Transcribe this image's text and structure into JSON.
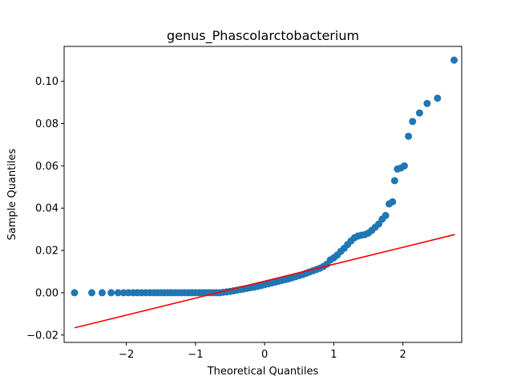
{
  "chart_data": {
    "type": "scatter",
    "title": "genus_Phascolarctobacterium",
    "xlabel": "Theoretical Quantiles",
    "ylabel": "Sample Quantiles",
    "xlim": [
      -2.9,
      2.85
    ],
    "ylim": [
      -0.0235,
      0.1165
    ],
    "xticks": [
      -2,
      -1,
      0,
      1,
      2
    ],
    "xtick_labels": [
      "−2",
      "−1",
      "0",
      "1",
      "2"
    ],
    "yticks": [
      -0.02,
      0.0,
      0.02,
      0.04,
      0.06,
      0.08,
      0.1
    ],
    "ytick_labels": [
      "−0.02",
      "0.00",
      "0.02",
      "0.04",
      "0.06",
      "0.08",
      "0.10"
    ],
    "grid": false,
    "point_color": "#1f77b4",
    "line_color": "#ff0000",
    "reference_line": {
      "x": [
        -2.75,
        2.75
      ],
      "y": [
        -0.0166,
        0.0275
      ]
    },
    "series": [
      {
        "values": [
          [
            -2.75,
            0.0
          ],
          [
            -2.5,
            0.0
          ],
          [
            -2.35,
            0.0
          ],
          [
            -2.22,
            0.0
          ],
          [
            -2.12,
            0.0
          ],
          [
            -2.04,
            0.0
          ],
          [
            -1.97,
            0.0
          ],
          [
            -1.9,
            0.0
          ],
          [
            -1.84,
            0.0
          ],
          [
            -1.78,
            0.0
          ],
          [
            -1.72,
            0.0
          ],
          [
            -1.66,
            0.0
          ],
          [
            -1.6,
            0.0
          ],
          [
            -1.55,
            0.0
          ],
          [
            -1.5,
            0.0
          ],
          [
            -1.45,
            0.0
          ],
          [
            -1.4,
            0.0
          ],
          [
            -1.35,
            0.0
          ],
          [
            -1.3,
            0.0
          ],
          [
            -1.25,
            0.0
          ],
          [
            -1.2,
            0.0
          ],
          [
            -1.15,
            0.0
          ],
          [
            -1.1,
            0.0
          ],
          [
            -1.05,
            0.0
          ],
          [
            -1.0,
            0.0
          ],
          [
            -0.95,
            0.0
          ],
          [
            -0.9,
            0.0
          ],
          [
            -0.85,
            0.0
          ],
          [
            -0.8,
            0.0
          ],
          [
            -0.75,
            0.0
          ],
          [
            -0.7,
            0.0
          ],
          [
            -0.65,
            0.0
          ],
          [
            -0.6,
            0.0002
          ],
          [
            -0.55,
            0.0004
          ],
          [
            -0.5,
            0.0006
          ],
          [
            -0.45,
            0.0009
          ],
          [
            -0.4,
            0.0012
          ],
          [
            -0.35,
            0.0015
          ],
          [
            -0.3,
            0.0018
          ],
          [
            -0.25,
            0.0021
          ],
          [
            -0.2,
            0.0024
          ],
          [
            -0.15,
            0.0027
          ],
          [
            -0.1,
            0.003
          ],
          [
            -0.05,
            0.0034
          ],
          [
            0.0,
            0.0038
          ],
          [
            0.05,
            0.0042
          ],
          [
            0.1,
            0.0046
          ],
          [
            0.15,
            0.005
          ],
          [
            0.2,
            0.0054
          ],
          [
            0.25,
            0.0058
          ],
          [
            0.3,
            0.0062
          ],
          [
            0.35,
            0.0066
          ],
          [
            0.4,
            0.0071
          ],
          [
            0.45,
            0.0076
          ],
          [
            0.5,
            0.0081
          ],
          [
            0.55,
            0.0086
          ],
          [
            0.6,
            0.0092
          ],
          [
            0.65,
            0.0098
          ],
          [
            0.7,
            0.0104
          ],
          [
            0.75,
            0.011
          ],
          [
            0.8,
            0.0116
          ],
          [
            0.85,
            0.0124
          ],
          [
            0.9,
            0.0135
          ],
          [
            0.95,
            0.0155
          ],
          [
            1.0,
            0.0165
          ],
          [
            1.05,
            0.0178
          ],
          [
            1.1,
            0.0195
          ],
          [
            1.15,
            0.021
          ],
          [
            1.2,
            0.0228
          ],
          [
            1.25,
            0.0245
          ],
          [
            1.3,
            0.026
          ],
          [
            1.35,
            0.0268
          ],
          [
            1.4,
            0.0272
          ],
          [
            1.45,
            0.0275
          ],
          [
            1.5,
            0.0282
          ],
          [
            1.55,
            0.0295
          ],
          [
            1.6,
            0.031
          ],
          [
            1.65,
            0.0325
          ],
          [
            1.7,
            0.0348
          ],
          [
            1.75,
            0.0365
          ],
          [
            1.8,
            0.042
          ],
          [
            1.85,
            0.043
          ],
          [
            1.88,
            0.053
          ],
          [
            1.92,
            0.0585
          ],
          [
            1.97,
            0.059
          ],
          [
            2.02,
            0.06
          ],
          [
            2.08,
            0.074
          ],
          [
            2.14,
            0.081
          ],
          [
            2.24,
            0.085
          ],
          [
            2.35,
            0.0895
          ],
          [
            2.5,
            0.092
          ],
          [
            2.74,
            0.11
          ]
        ]
      }
    ]
  }
}
